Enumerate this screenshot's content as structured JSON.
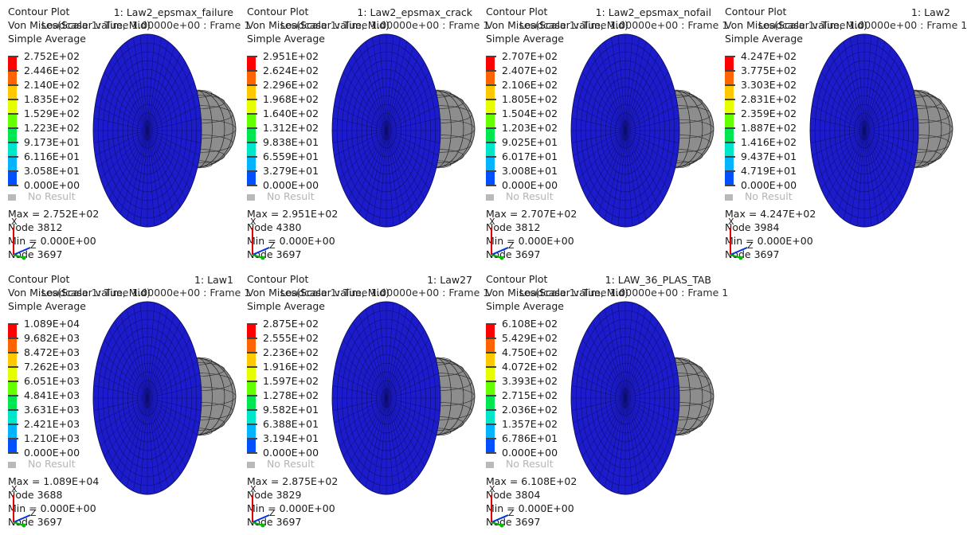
{
  "common": {
    "title": "Contour Plot",
    "subtitle": "Von Mises(Scalar value, Mid)",
    "overlay_text": "Loadcase 1: Time 1.00000e+00 : Frame 1",
    "averaging": "Simple Average",
    "no_result": "No Result",
    "min_label": "Min =  0.000E+00",
    "min_node": "Node 3697",
    "triad_x": "X",
    "triad_z": "Z",
    "colors": [
      "#0000c8",
      "#0050ff",
      "#00b4ff",
      "#00e6c8",
      "#00e650",
      "#64ff00",
      "#e6ff00",
      "#ffc800",
      "#ff6400",
      "#ff0000"
    ],
    "no_result_color": "#b9b9b9",
    "part_color": "#1c1ccc",
    "sphere_color": "#8d8d8d"
  },
  "panels": [
    {
      "name": "1: Law2_epsmax_failure",
      "legend": [
        "2.752E+02",
        "2.446E+02",
        "2.140E+02",
        "1.835E+02",
        "1.529E+02",
        "1.223E+02",
        "9.173E+01",
        "6.116E+01",
        "3.058E+01",
        "0.000E+00"
      ],
      "max": "Max =  2.752E+02",
      "max_node": "Node 3812"
    },
    {
      "name": "1: Law2_epsmax_crack",
      "legend": [
        "2.951E+02",
        "2.624E+02",
        "2.296E+02",
        "1.968E+02",
        "1.640E+02",
        "1.312E+02",
        "9.838E+01",
        "6.559E+01",
        "3.279E+01",
        "0.000E+00"
      ],
      "max": "Max =  2.951E+02",
      "max_node": "Node 4380"
    },
    {
      "name": "1: Law2_epsmax_nofail",
      "legend": [
        "2.707E+02",
        "2.407E+02",
        "2.106E+02",
        "1.805E+02",
        "1.504E+02",
        "1.203E+02",
        "9.025E+01",
        "6.017E+01",
        "3.008E+01",
        "0.000E+00"
      ],
      "max": "Max =  2.707E+02",
      "max_node": "Node 3812"
    },
    {
      "name": "1: Law2",
      "legend": [
        "4.247E+02",
        "3.775E+02",
        "3.303E+02",
        "2.831E+02",
        "2.359E+02",
        "1.887E+02",
        "1.416E+02",
        "9.437E+01",
        "4.719E+01",
        "0.000E+00"
      ],
      "max": "Max =  4.247E+02",
      "max_node": "Node 3984"
    },
    {
      "name": "1: Law1",
      "legend": [
        "1.089E+04",
        "9.682E+03",
        "8.472E+03",
        "7.262E+03",
        "6.051E+03",
        "4.841E+03",
        "3.631E+03",
        "2.421E+03",
        "1.210E+03",
        "0.000E+00"
      ],
      "max": "Max =  1.089E+04",
      "max_node": "Node 3688"
    },
    {
      "name": "1: Law27",
      "legend": [
        "2.875E+02",
        "2.555E+02",
        "2.236E+02",
        "1.916E+02",
        "1.597E+02",
        "1.278E+02",
        "9.582E+01",
        "6.388E+01",
        "3.194E+01",
        "0.000E+00"
      ],
      "max": "Max =  2.875E+02",
      "max_node": "Node 3829"
    },
    {
      "name": "1: LAW_36_PLAS_TAB",
      "legend": [
        "6.108E+02",
        "5.429E+02",
        "4.750E+02",
        "4.072E+02",
        "3.393E+02",
        "2.715E+02",
        "2.036E+02",
        "1.357E+02",
        "6.786E+01",
        "0.000E+00"
      ],
      "max": "Max =  6.108E+02",
      "max_node": "Node 3804"
    }
  ]
}
